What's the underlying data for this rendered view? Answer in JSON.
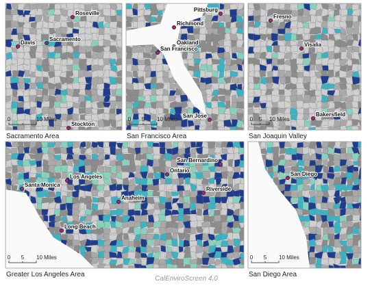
{
  "panels": [
    {
      "title": "Sacramento Area",
      "cities": [
        "Roseville",
        "Sacramento",
        "Davis",
        "Stockton"
      ],
      "scale": [
        "0",
        "10 Miles"
      ]
    },
    {
      "title": "San Francisco Area",
      "cities": [
        "Pittsburg",
        "Richmond",
        "Oakland",
        "San Francisco",
        "San Jose"
      ],
      "scale": [
        "0",
        "5",
        "10 Miles"
      ]
    },
    {
      "title": "San Joaquin Valley",
      "cities": [
        "Fresno",
        "Visalia",
        "Bakersfield"
      ],
      "scale": [
        "0",
        "5",
        "10 Miles"
      ]
    },
    {
      "title": "Greater Los Angeles Area",
      "cities": [
        "San Bernardino",
        "Ontario",
        "Los Angeles",
        "Santa Monica",
        "Riverside",
        "Anaheim",
        "Long Beach"
      ],
      "scale": [
        "0",
        "5",
        "10 Miles"
      ]
    },
    {
      "title": "San Diego Area",
      "cities": [
        "San Diego"
      ],
      "scale": [
        "0",
        "5",
        "10 Miles"
      ]
    }
  ],
  "source": "CalEnviroScreen 4.0"
}
